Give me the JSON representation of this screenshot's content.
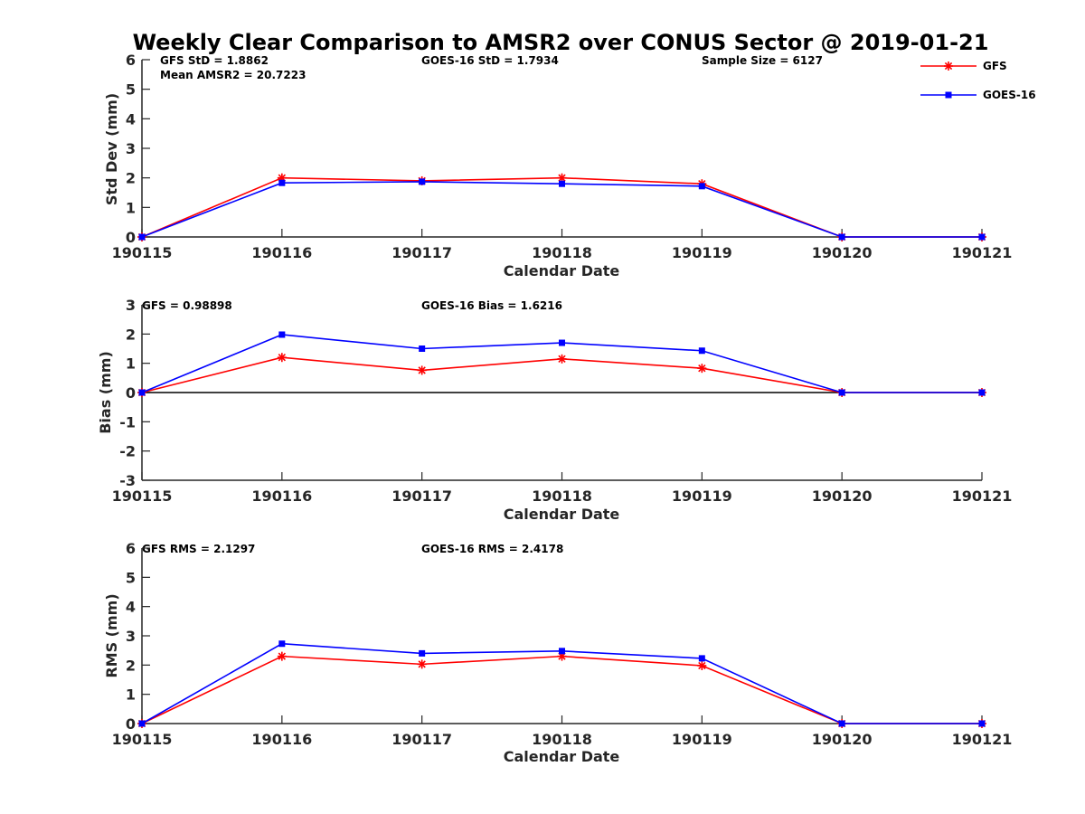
{
  "chart_data": {
    "title": "Weekly Clear Comparison to AMSR2 over CONUS Sector @ 2019-01-21",
    "type": "line",
    "x": [
      "190115",
      "190116",
      "190117",
      "190118",
      "190119",
      "190120",
      "190121"
    ],
    "legend": {
      "placement": "top-right",
      "entries": [
        {
          "name": "GFS",
          "color": "#ff0000",
          "marker": "asterisk"
        },
        {
          "name": "GOES-16",
          "color": "#0000ff",
          "marker": "square"
        }
      ]
    },
    "panels": [
      {
        "id": "stddev",
        "xlabel": "Calendar Date",
        "ylabel": "Std Dev (mm)",
        "ylim": [
          0,
          6
        ],
        "yticks": [
          "0",
          "1",
          "2",
          "3",
          "4",
          "5",
          "6"
        ],
        "zero_line": false,
        "annotations": [
          "GFS StD = 1.8862",
          "Mean AMSR2 = 20.7223",
          "GOES-16 StD = 1.7934",
          "Sample Size = 6127"
        ],
        "series": [
          {
            "name": "GFS",
            "color": "#ff0000",
            "marker": "asterisk",
            "values": [
              0,
              2.0,
              1.9,
              2.0,
              1.8,
              0,
              0
            ]
          },
          {
            "name": "GOES-16",
            "color": "#0000ff",
            "marker": "square",
            "values": [
              0,
              1.83,
              1.87,
              1.8,
              1.72,
              0,
              0
            ]
          }
        ]
      },
      {
        "id": "bias",
        "xlabel": "Calendar Date",
        "ylabel": "Bias (mm)",
        "ylim": [
          -3,
          3
        ],
        "yticks": [
          "-3",
          "-2",
          "-1",
          "0",
          "1",
          "2",
          "3"
        ],
        "zero_line": true,
        "annotations": [
          "GFS = 0.98898",
          "GOES-16 Bias  = 1.6216"
        ],
        "series": [
          {
            "name": "GFS",
            "color": "#ff0000",
            "marker": "asterisk",
            "values": [
              0,
              1.2,
              0.76,
              1.15,
              0.83,
              0,
              0
            ]
          },
          {
            "name": "GOES-16",
            "color": "#0000ff",
            "marker": "square",
            "values": [
              0,
              1.98,
              1.5,
              1.7,
              1.43,
              0,
              0
            ]
          }
        ]
      },
      {
        "id": "rms",
        "xlabel": "Calendar Date",
        "ylabel": "RMS (mm)",
        "ylim": [
          0,
          6
        ],
        "yticks": [
          "0",
          "1",
          "2",
          "3",
          "4",
          "5",
          "6"
        ],
        "zero_line": false,
        "annotations": [
          "GFS RMS = 2.1297",
          "GOES-16 RMS = 2.4178"
        ],
        "series": [
          {
            "name": "GFS",
            "color": "#ff0000",
            "marker": "asterisk",
            "values": [
              0,
              2.3,
              2.03,
              2.3,
              1.98,
              0,
              0
            ]
          },
          {
            "name": "GOES-16",
            "color": "#0000ff",
            "marker": "square",
            "values": [
              0,
              2.73,
              2.4,
              2.48,
              2.23,
              0,
              0
            ]
          }
        ]
      }
    ]
  }
}
